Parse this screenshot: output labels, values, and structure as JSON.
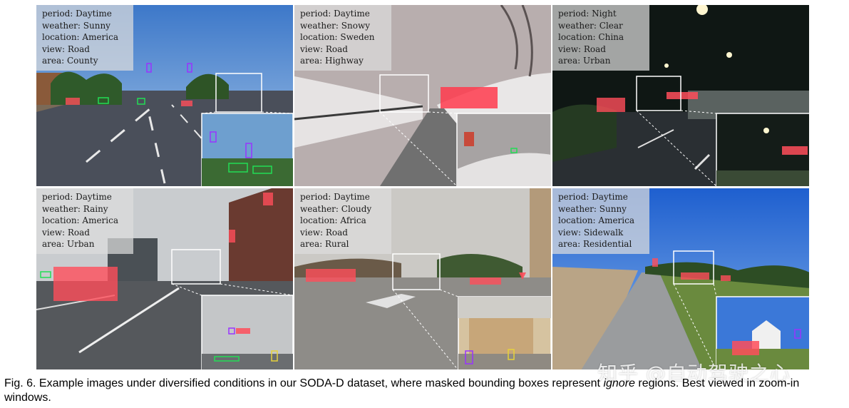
{
  "panels": [
    {
      "period": "period: Daytime",
      "weather": "weather: Sunny",
      "location": "location: America",
      "view": "view: Road",
      "area": "area: County"
    },
    {
      "period": "period: Daytime",
      "weather": "weather: Snowy",
      "location": "location: Sweden",
      "view": "view: Road",
      "area": "area: Highway"
    },
    {
      "period": "period: Night",
      "weather": "weather: Clear",
      "location": "location: China",
      "view": "view: Road",
      "area": "area: Urban"
    },
    {
      "period": "period: Daytime",
      "weather": "weather: Rainy",
      "location": "location: America",
      "view": "view: Road",
      "area": "area: Urban"
    },
    {
      "period": "period: Daytime",
      "weather": "weather: Cloudy",
      "location": "location: Africa",
      "view": "view: Road",
      "area": "area: Rural"
    },
    {
      "period": "period: Daytime",
      "weather": "weather: Sunny",
      "location": "location: America",
      "view": "view: Sidewalk",
      "area": "area: Residential"
    }
  ],
  "caption": {
    "part1": "Fig. 6. Example images under diversified conditions in our SODA-D dataset, where masked bounding boxes represent ",
    "emph": "ignore",
    "part2": " regions. Best viewed in zoom-in windows."
  },
  "watermark": "知乎 @自动驾驶之心"
}
